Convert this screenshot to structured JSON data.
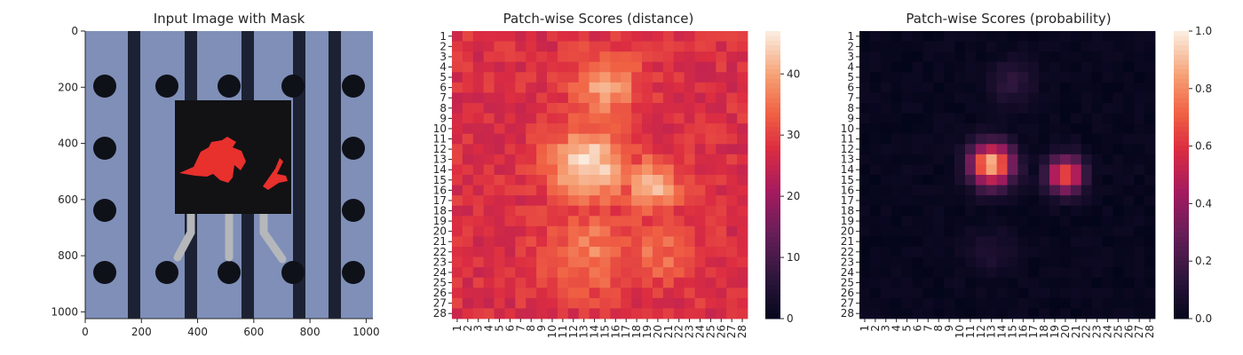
{
  "chart_data": [
    {
      "type": "image",
      "title": "Input Image with Mask",
      "x_ticks": [
        "0",
        "200",
        "400",
        "600",
        "800",
        "1000"
      ],
      "y_ticks": [
        "0",
        "200",
        "400",
        "600",
        "800",
        "1000"
      ],
      "xlim": [
        0,
        1024
      ],
      "ylim": [
        1024,
        0
      ],
      "image_description_colors": {
        "background": "#7f8fb8",
        "stripe": "#1c2233",
        "chip": "#121214",
        "mask": "#e8302c",
        "hole": "#0e1118",
        "lead": "#b8b8b8"
      }
    },
    {
      "type": "heatmap",
      "title": "Patch-wise Scores (distance)",
      "rows": 28,
      "cols": 28,
      "row_labels": [
        "1",
        "2",
        "3",
        "4",
        "5",
        "6",
        "7",
        "8",
        "9",
        "10",
        "11",
        "12",
        "13",
        "14",
        "15",
        "16",
        "17",
        "18",
        "19",
        "20",
        "21",
        "22",
        "23",
        "24",
        "25",
        "26",
        "27",
        "28"
      ],
      "col_labels": [
        "1",
        "2",
        "3",
        "4",
        "5",
        "6",
        "7",
        "8",
        "9",
        "10",
        "11",
        "12",
        "13",
        "14",
        "15",
        "16",
        "17",
        "18",
        "19",
        "20",
        "21",
        "22",
        "23",
        "24",
        "25",
        "26",
        "27",
        "28"
      ],
      "colorbar": {
        "min": 0,
        "max": 47,
        "ticks": [
          "0",
          "10",
          "20",
          "30",
          "40"
        ],
        "tick_values": [
          0,
          10,
          20,
          30,
          40
        ]
      },
      "colormap": "rocket",
      "base_value": 28,
      "hotspots": [
        {
          "row": 13.5,
          "col": 13.5,
          "value": 46,
          "spread": 2.6
        },
        {
          "row": 15.5,
          "col": 19.5,
          "value": 42,
          "spread": 1.8
        },
        {
          "row": 6,
          "col": 15,
          "value": 40,
          "spread": 2.2
        },
        {
          "row": 22,
          "col": 13.5,
          "value": 37,
          "spread": 2.8
        },
        {
          "row": 22,
          "col": 20,
          "value": 35,
          "spread": 2.4
        }
      ]
    },
    {
      "type": "heatmap",
      "title": "Patch-wise Scores (probability)",
      "rows": 28,
      "cols": 28,
      "row_labels": [
        "1",
        "2",
        "3",
        "4",
        "5",
        "6",
        "7",
        "8",
        "9",
        "10",
        "11",
        "12",
        "13",
        "14",
        "15",
        "16",
        "17",
        "18",
        "19",
        "20",
        "21",
        "22",
        "23",
        "24",
        "25",
        "26",
        "27",
        "28"
      ],
      "col_labels": [
        "1",
        "2",
        "3",
        "4",
        "5",
        "6",
        "7",
        "8",
        "9",
        "10",
        "11",
        "12",
        "13",
        "14",
        "15",
        "16",
        "17",
        "18",
        "19",
        "20",
        "21",
        "22",
        "23",
        "24",
        "25",
        "26",
        "27",
        "28"
      ],
      "colorbar": {
        "min": 0,
        "max": 1,
        "ticks": [
          "0.0",
          "0.2",
          "0.4",
          "0.6",
          "0.8",
          "1.0"
        ],
        "tick_values": [
          0,
          0.2,
          0.4,
          0.6,
          0.8,
          1.0
        ]
      },
      "colormap": "rocket",
      "base_value": 0.02,
      "hotspots": [
        {
          "row": 13.5,
          "col": 13,
          "value": 0.92,
          "spread": 1.4
        },
        {
          "row": 14.5,
          "col": 20,
          "value": 0.7,
          "spread": 1.2
        },
        {
          "row": 5.5,
          "col": 15,
          "value": 0.15,
          "spread": 1.5
        },
        {
          "row": 22,
          "col": 13,
          "value": 0.1,
          "spread": 1.5
        }
      ]
    }
  ]
}
